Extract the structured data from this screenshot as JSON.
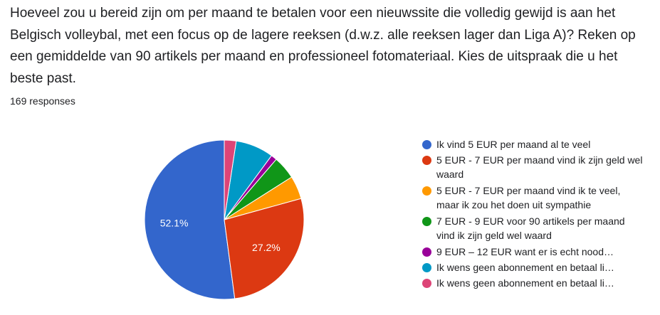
{
  "question": "Hoeveel zou u bereid zijn om per maand te betalen voor een nieuwssite die volledig gewijd is aan het Belgisch volleybal, met een focus op de lagere reeksen (d.w.z. alle reeksen lager dan Liga A)? Reken op een gemiddelde van 90 artikels per maand en professioneel fotomateriaal. Kies de uitspraak die u het beste past.",
  "responses_text": "169 responses",
  "chart_data": {
    "type": "pie",
    "start_angle_deg": 90,
    "direction": "counterclockwise",
    "slices": [
      {
        "label": "Ik vind 5 EUR per maand al te veel",
        "value": 52.1,
        "color": "#3366cc",
        "data_label": "52.1%"
      },
      {
        "label": "5 EUR - 7 EUR per maand vind ik zijn geld wel waard",
        "value": 27.2,
        "color": "#dc3912",
        "data_label": "27.2%"
      },
      {
        "label": "5 EUR - 7 EUR per maand vind ik te veel, maar ik zou het doen uit sympathie",
        "value": 4.7,
        "color": "#ff9900",
        "data_label": ""
      },
      {
        "label": "7 EUR - 9 EUR voor 90 artikels per maand vind ik zijn geld wel waard",
        "value": 4.7,
        "color": "#109618",
        "data_label": ""
      },
      {
        "label": "9 EUR – 12 EUR want er is echt nood…",
        "value": 1.2,
        "color": "#990099",
        "data_label": ""
      },
      {
        "label": "Ik wens geen abonnement en betaal li…",
        "value": 7.7,
        "color": "#0099c6",
        "data_label": ""
      },
      {
        "label": "Ik wens geen abonnement en betaal li…",
        "value": 2.4,
        "color": "#dd4477",
        "data_label": ""
      }
    ]
  }
}
